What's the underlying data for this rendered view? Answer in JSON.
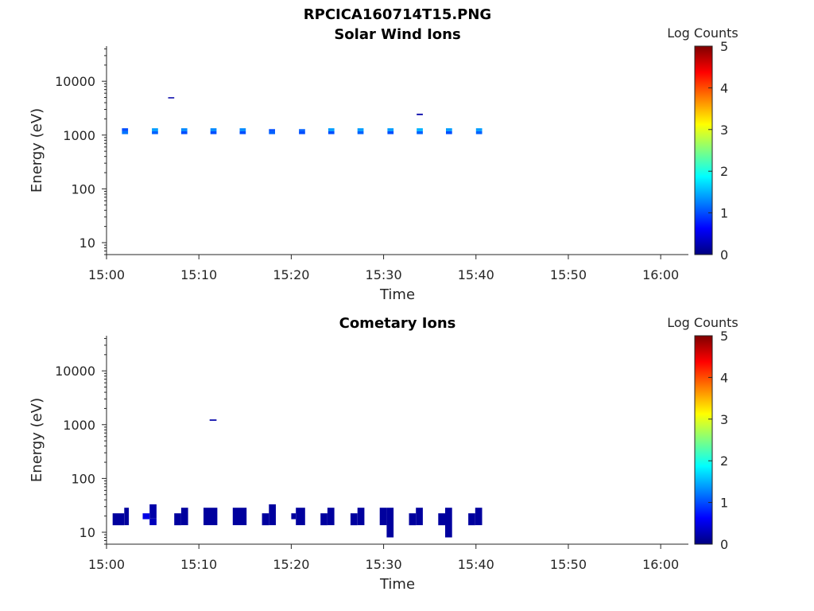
{
  "figure": {
    "title": "RPCICA160714T15.PNG"
  },
  "chart_data": [
    {
      "type": "heatmap",
      "title": "Solar Wind Ions",
      "xlabel": "Time",
      "ylabel": "Energy (eV)",
      "x_range": [
        "15:00",
        "16:03"
      ],
      "x_ticks": [
        "15:00",
        "15:10",
        "15:20",
        "15:30",
        "15:40",
        "15:50",
        "16:00"
      ],
      "y_scale": "log",
      "y_range": [
        6,
        45000
      ],
      "y_ticks": [
        10,
        100,
        1000,
        10000
      ],
      "y_tick_labels": [
        "10",
        "100",
        "1000",
        "10000"
      ],
      "colorbar": {
        "label": "Log Counts",
        "range": [
          0,
          5
        ],
        "ticks": [
          "0",
          "1",
          "2",
          "3",
          "4",
          "5"
        ],
        "colormap": "jet"
      },
      "cells": [
        {
          "t0": "15:01:40",
          "t1": "15:02:20",
          "e0": 1040,
          "e1": 1180,
          "v": 1.2
        },
        {
          "t0": "15:01:40",
          "t1": "15:02:20",
          "e0": 1180,
          "e1": 1340,
          "v": 1.0
        },
        {
          "t0": "15:04:55",
          "t1": "15:05:35",
          "e0": 1040,
          "e1": 1180,
          "v": 1.1
        },
        {
          "t0": "15:04:55",
          "t1": "15:05:35",
          "e0": 1180,
          "e1": 1340,
          "v": 1.4
        },
        {
          "t0": "15:06:40",
          "t1": "15:07:20",
          "e0": 4800,
          "e1": 5050,
          "v": 0.2
        },
        {
          "t0": "15:08:05",
          "t1": "15:08:45",
          "e0": 1040,
          "e1": 1180,
          "v": 1.0
        },
        {
          "t0": "15:08:05",
          "t1": "15:08:45",
          "e0": 1180,
          "e1": 1340,
          "v": 1.3
        },
        {
          "t0": "15:11:15",
          "t1": "15:11:55",
          "e0": 1040,
          "e1": 1180,
          "v": 1.0
        },
        {
          "t0": "15:11:15",
          "t1": "15:11:55",
          "e0": 1180,
          "e1": 1340,
          "v": 1.3
        },
        {
          "t0": "15:14:25",
          "t1": "15:15:05",
          "e0": 1040,
          "e1": 1180,
          "v": 1.0
        },
        {
          "t0": "15:14:25",
          "t1": "15:15:05",
          "e0": 1180,
          "e1": 1340,
          "v": 1.3
        },
        {
          "t0": "15:17:35",
          "t1": "15:18:15",
          "e0": 1040,
          "e1": 1180,
          "v": 1.1
        },
        {
          "t0": "15:17:35",
          "t1": "15:18:15",
          "e0": 1180,
          "e1": 1290,
          "v": 1.0
        },
        {
          "t0": "15:20:50",
          "t1": "15:21:30",
          "e0": 1040,
          "e1": 1180,
          "v": 1.0
        },
        {
          "t0": "15:20:50",
          "t1": "15:21:30",
          "e0": 1180,
          "e1": 1290,
          "v": 1.1
        },
        {
          "t0": "15:24:00",
          "t1": "15:24:40",
          "e0": 1040,
          "e1": 1180,
          "v": 1.0
        },
        {
          "t0": "15:24:00",
          "t1": "15:24:40",
          "e0": 1180,
          "e1": 1340,
          "v": 1.4
        },
        {
          "t0": "15:27:10",
          "t1": "15:27:50",
          "e0": 1040,
          "e1": 1180,
          "v": 1.1
        },
        {
          "t0": "15:27:10",
          "t1": "15:27:50",
          "e0": 1180,
          "e1": 1340,
          "v": 1.4
        },
        {
          "t0": "15:30:25",
          "t1": "15:31:05",
          "e0": 1040,
          "e1": 1180,
          "v": 1.0
        },
        {
          "t0": "15:30:25",
          "t1": "15:31:05",
          "e0": 1180,
          "e1": 1340,
          "v": 1.4
        },
        {
          "t0": "15:33:35",
          "t1": "15:34:15",
          "e0": 2350,
          "e1": 2500,
          "v": 0.2
        },
        {
          "t0": "15:33:35",
          "t1": "15:34:15",
          "e0": 1040,
          "e1": 1180,
          "v": 1.1
        },
        {
          "t0": "15:33:35",
          "t1": "15:34:15",
          "e0": 1180,
          "e1": 1340,
          "v": 1.5
        },
        {
          "t0": "15:36:45",
          "t1": "15:37:25",
          "e0": 1040,
          "e1": 1180,
          "v": 1.0
        },
        {
          "t0": "15:36:45",
          "t1": "15:37:25",
          "e0": 1180,
          "e1": 1340,
          "v": 1.4
        },
        {
          "t0": "15:40:00",
          "t1": "15:40:40",
          "e0": 1040,
          "e1": 1180,
          "v": 1.1
        },
        {
          "t0": "15:40:00",
          "t1": "15:40:40",
          "e0": 1180,
          "e1": 1340,
          "v": 1.4
        }
      ]
    },
    {
      "type": "heatmap",
      "title": "Cometary Ions",
      "xlabel": "Time",
      "ylabel": "Energy (eV)",
      "x_range": [
        "15:00",
        "16:03"
      ],
      "x_ticks": [
        "15:00",
        "15:10",
        "15:20",
        "15:30",
        "15:40",
        "15:50",
        "16:00"
      ],
      "y_scale": "log",
      "y_range": [
        6,
        45000
      ],
      "y_ticks": [
        10,
        100,
        1000,
        10000
      ],
      "y_tick_labels": [
        "10",
        "100",
        "1000",
        "10000"
      ],
      "colorbar": {
        "label": "Log Counts",
        "range": [
          0,
          5
        ],
        "ticks": [
          "0",
          "1",
          "2",
          "3",
          "4",
          "5"
        ],
        "colormap": "jet"
      },
      "cells": [
        {
          "t0": "15:00:40",
          "t1": "15:01:55",
          "e0": 13.5,
          "e1": 22.5,
          "v": 0.15
        },
        {
          "t0": "15:01:55",
          "t1": "15:02:25",
          "e0": 13.5,
          "e1": 28.5,
          "v": 0.15
        },
        {
          "t0": "15:03:55",
          "t1": "15:04:40",
          "e0": 17.5,
          "e1": 22.5,
          "v": 0.5
        },
        {
          "t0": "15:04:40",
          "t1": "15:05:25",
          "e0": 13.5,
          "e1": 18.0,
          "v": 0.3
        },
        {
          "t0": "15:04:40",
          "t1": "15:05:25",
          "e0": 18.0,
          "e1": 33.0,
          "v": 0.2
        },
        {
          "t0": "15:07:20",
          "t1": "15:08:05",
          "e0": 13.5,
          "e1": 22.5,
          "v": 0.15
        },
        {
          "t0": "15:08:05",
          "t1": "15:08:50",
          "e0": 13.5,
          "e1": 28.5,
          "v": 0.15
        },
        {
          "t0": "15:10:30",
          "t1": "15:12:00",
          "e0": 13.5,
          "e1": 28.5,
          "v": 0.15
        },
        {
          "t0": "15:11:10",
          "t1": "15:11:55",
          "e0": 1180,
          "e1": 1250,
          "v": 0.2
        },
        {
          "t0": "15:13:40",
          "t1": "15:15:10",
          "e0": 13.5,
          "e1": 28.5,
          "v": 0.15
        },
        {
          "t0": "15:16:50",
          "t1": "15:17:35",
          "e0": 13.5,
          "e1": 22.5,
          "v": 0.15
        },
        {
          "t0": "15:17:35",
          "t1": "15:18:20",
          "e0": 13.5,
          "e1": 33.0,
          "v": 0.15
        },
        {
          "t0": "15:20:00",
          "t1": "15:20:30",
          "e0": 17.5,
          "e1": 22.5,
          "v": 0.15
        },
        {
          "t0": "15:20:30",
          "t1": "15:21:30",
          "e0": 13.5,
          "e1": 28.5,
          "v": 0.15
        },
        {
          "t0": "15:23:10",
          "t1": "15:23:55",
          "e0": 13.5,
          "e1": 22.5,
          "v": 0.15
        },
        {
          "t0": "15:23:55",
          "t1": "15:24:40",
          "e0": 13.5,
          "e1": 28.5,
          "v": 0.15
        },
        {
          "t0": "15:26:25",
          "t1": "15:27:10",
          "e0": 13.5,
          "e1": 22.5,
          "v": 0.15
        },
        {
          "t0": "15:27:10",
          "t1": "15:27:55",
          "e0": 13.5,
          "e1": 28.5,
          "v": 0.15
        },
        {
          "t0": "15:29:35",
          "t1": "15:30:20",
          "e0": 13.5,
          "e1": 28.5,
          "v": 0.15
        },
        {
          "t0": "15:30:20",
          "t1": "15:31:05",
          "e0": 8.0,
          "e1": 28.5,
          "v": 0.15
        },
        {
          "t0": "15:32:45",
          "t1": "15:33:30",
          "e0": 13.5,
          "e1": 22.5,
          "v": 0.15
        },
        {
          "t0": "15:33:30",
          "t1": "15:34:15",
          "e0": 13.5,
          "e1": 28.5,
          "v": 0.15
        },
        {
          "t0": "15:35:55",
          "t1": "15:36:40",
          "e0": 13.5,
          "e1": 22.5,
          "v": 0.15
        },
        {
          "t0": "15:36:40",
          "t1": "15:37:25",
          "e0": 8.0,
          "e1": 28.5,
          "v": 0.15
        },
        {
          "t0": "15:39:10",
          "t1": "15:39:55",
          "e0": 13.5,
          "e1": 22.5,
          "v": 0.15
        },
        {
          "t0": "15:39:55",
          "t1": "15:40:40",
          "e0": 13.5,
          "e1": 28.5,
          "v": 0.15
        }
      ]
    }
  ]
}
